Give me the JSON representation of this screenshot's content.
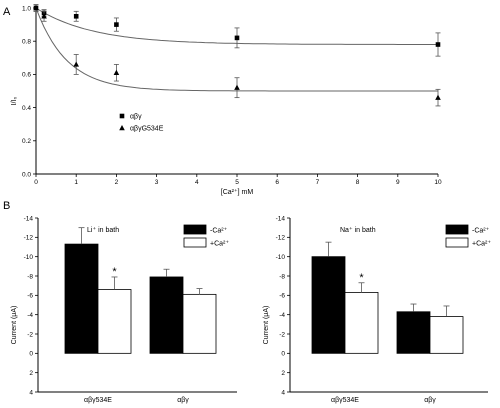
{
  "panels": {
    "a": "A",
    "b": "B"
  },
  "chart_data": [
    {
      "type": "scatter",
      "xlabel": "[Ca²⁺] mM",
      "ylabel": "I/I₀",
      "xlim": [
        0,
        10
      ],
      "ylim": [
        0,
        1
      ],
      "xticks": [
        "0",
        "1",
        "2",
        "3",
        "4",
        "5",
        "6",
        "7",
        "8",
        "9",
        "10"
      ],
      "yticks": [
        "0.0",
        "0.2",
        "0.4",
        "0.6",
        "0.8",
        "1.0"
      ],
      "legend": "lower-left",
      "series": [
        {
          "name": "αβγ",
          "marker": "square",
          "x": [
            0,
            0.2,
            1,
            2,
            5,
            10
          ],
          "y": [
            1.0,
            0.97,
            0.95,
            0.9,
            0.82,
            0.78
          ],
          "err": [
            0.02,
            0.02,
            0.03,
            0.04,
            0.06,
            0.07
          ],
          "fit": {
            "plateau": 0.78,
            "k": 0.7
          }
        },
        {
          "name": "αβγG534E",
          "marker": "triangle",
          "x": [
            0,
            0.2,
            1,
            2,
            5,
            10
          ],
          "y": [
            1.0,
            0.95,
            0.66,
            0.61,
            0.52,
            0.46
          ],
          "err": [
            0.02,
            0.03,
            0.06,
            0.05,
            0.06,
            0.05
          ],
          "fit": {
            "plateau": 0.5,
            "k": 1.3
          }
        }
      ]
    },
    {
      "type": "bar",
      "annotation": "Li⁺ in bath",
      "ylabel": "Current (μA)",
      "ylim": [
        -14,
        4
      ],
      "yticks": [
        "-14",
        "-12",
        "-10",
        "-8",
        "-6",
        "-4",
        "-2",
        "0",
        "2",
        "4"
      ],
      "categories": [
        "αβγ534E",
        "αβγ"
      ],
      "legend": "top-right",
      "series": [
        {
          "name": "-Ca²⁺",
          "color": "#000000",
          "values": [
            -11.3,
            -7.9
          ],
          "err": [
            1.7,
            0.8
          ]
        },
        {
          "name": "+Ca²⁺",
          "color": "#ffffff",
          "values": [
            -6.6,
            -6.1
          ],
          "err": [
            1.3,
            0.6
          ]
        }
      ],
      "significance": [
        {
          "category": 0,
          "series": 1,
          "mark": "*"
        }
      ]
    },
    {
      "type": "bar",
      "annotation": "Na⁺ in bath",
      "ylabel": "Current (μA)",
      "ylim": [
        -14,
        4
      ],
      "yticks": [
        "-14",
        "-12",
        "-10",
        "-8",
        "-6",
        "-4",
        "-2",
        "0",
        "2",
        "4"
      ],
      "categories": [
        "αβγ534E",
        "αβγ"
      ],
      "legend": "top-right",
      "series": [
        {
          "name": "-Ca²⁺",
          "color": "#000000",
          "values": [
            -10.0,
            -4.3
          ],
          "err": [
            1.5,
            0.8
          ]
        },
        {
          "name": "+Ca²⁺",
          "color": "#ffffff",
          "values": [
            -6.3,
            -3.8
          ],
          "err": [
            1.0,
            1.1
          ]
        }
      ],
      "significance": [
        {
          "category": 0,
          "series": 1,
          "mark": "*"
        }
      ]
    }
  ]
}
